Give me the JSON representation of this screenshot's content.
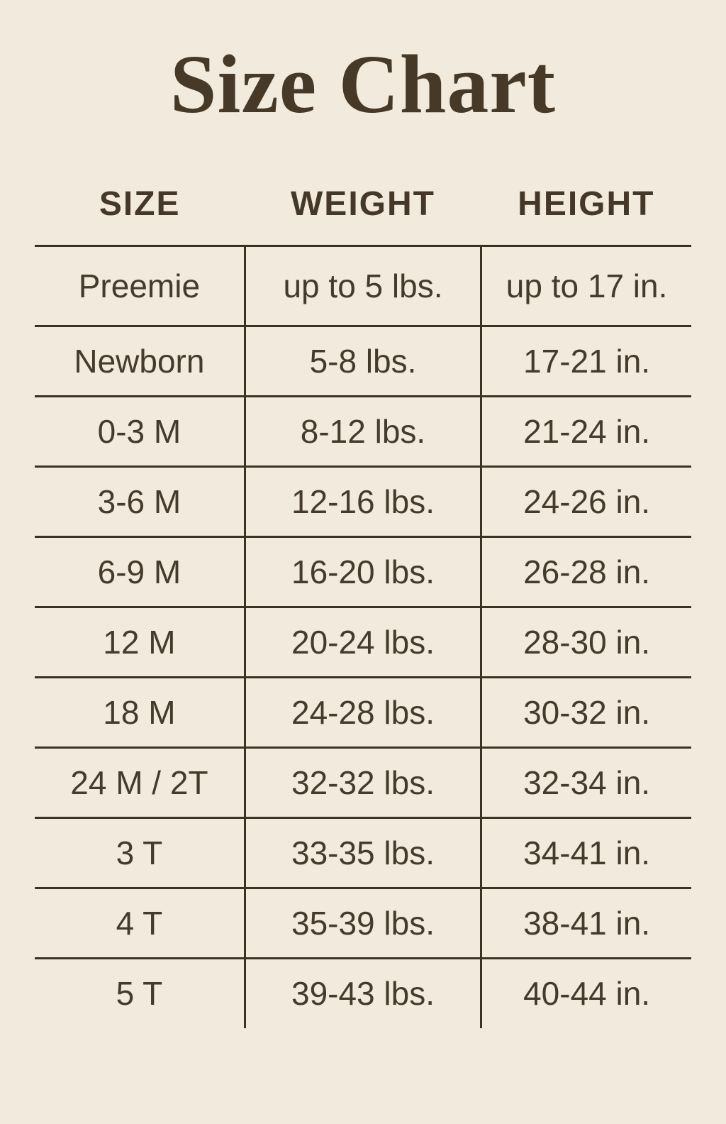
{
  "page": {
    "title": "Size Chart"
  },
  "colors": {
    "background": "#f1eadd",
    "text": "#453a2b",
    "line": "#3c3222"
  },
  "chart_data": {
    "type": "table",
    "title": "Size Chart",
    "columns": [
      "SIZE",
      "WEIGHT",
      "HEIGHT"
    ],
    "rows": [
      [
        "Preemie",
        "up to 5 lbs.",
        "up to 17 in."
      ],
      [
        "Newborn",
        "5-8 lbs.",
        "17-21 in."
      ],
      [
        "0-3 M",
        "8-12 lbs.",
        "21-24 in."
      ],
      [
        "3-6 M",
        "12-16 lbs.",
        "24-26 in."
      ],
      [
        "6-9 M",
        "16-20 lbs.",
        "26-28 in."
      ],
      [
        "12 M",
        "20-24 lbs.",
        "28-30 in."
      ],
      [
        "18 M",
        "24-28 lbs.",
        "30-32 in."
      ],
      [
        "24 M / 2T",
        "32-32 lbs.",
        "32-34 in."
      ],
      [
        "3 T",
        "33-35 lbs.",
        "34-41 in."
      ],
      [
        "4 T",
        "35-39 lbs.",
        "38-41 in."
      ],
      [
        "5 T",
        "39-43 lbs.",
        "40-44 in."
      ]
    ]
  }
}
